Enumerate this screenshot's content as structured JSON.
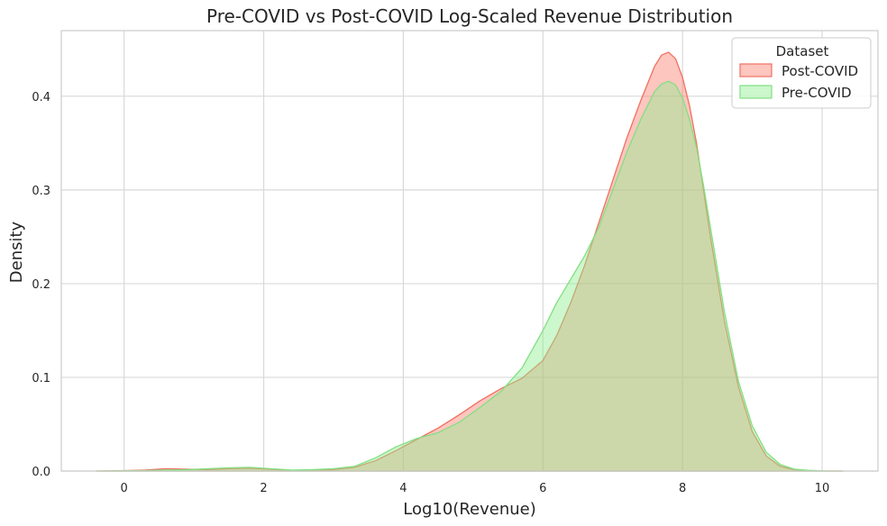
{
  "chart_data": {
    "type": "area",
    "title": "Pre-COVID vs Post-COVID Log-Scaled Revenue Distribution",
    "xlabel": "Log10(Revenue)",
    "ylabel": "Density",
    "xlim": [
      -0.9,
      10.8
    ],
    "ylim": [
      0,
      0.47
    ],
    "xticks": [
      0,
      2,
      4,
      6,
      8,
      10
    ],
    "yticks": [
      0.0,
      0.1,
      0.2,
      0.3,
      0.4
    ],
    "grid": true,
    "legend": {
      "title": "Dataset",
      "placement": "top-right"
    },
    "series": [
      {
        "name": "Post-COVID",
        "fill": "#fa8072",
        "fill_opacity": 0.45,
        "stroke": "#f07060",
        "x": [
          -0.4,
          0.0,
          0.3,
          0.6,
          0.9,
          1.2,
          1.5,
          1.8,
          2.1,
          2.4,
          2.7,
          3.0,
          3.3,
          3.6,
          3.9,
          4.2,
          4.5,
          4.8,
          5.1,
          5.4,
          5.7,
          6.0,
          6.2,
          6.4,
          6.6,
          6.8,
          7.0,
          7.2,
          7.4,
          7.6,
          7.7,
          7.8,
          7.9,
          8.0,
          8.1,
          8.2,
          8.3,
          8.4,
          8.6,
          8.8,
          9.0,
          9.2,
          9.4,
          9.6,
          9.8,
          10.0,
          10.3
        ],
        "y": [
          0.0,
          0.0005,
          0.001,
          0.0025,
          0.002,
          0.0015,
          0.0025,
          0.003,
          0.002,
          0.0005,
          0.0005,
          0.0015,
          0.004,
          0.011,
          0.022,
          0.034,
          0.046,
          0.06,
          0.075,
          0.088,
          0.099,
          0.118,
          0.145,
          0.18,
          0.22,
          0.265,
          0.31,
          0.355,
          0.395,
          0.432,
          0.444,
          0.447,
          0.44,
          0.42,
          0.39,
          0.35,
          0.3,
          0.25,
          0.16,
          0.09,
          0.042,
          0.016,
          0.005,
          0.0015,
          0.0005,
          0.0001,
          0.0
        ]
      },
      {
        "name": "Pre-COVID",
        "fill": "#90ee90",
        "fill_opacity": 0.45,
        "stroke": "#82e082",
        "x": [
          -0.4,
          0.0,
          0.3,
          0.6,
          0.9,
          1.2,
          1.5,
          1.8,
          2.1,
          2.4,
          2.7,
          3.0,
          3.3,
          3.6,
          3.9,
          4.2,
          4.5,
          4.8,
          5.1,
          5.4,
          5.7,
          6.0,
          6.2,
          6.4,
          6.6,
          6.8,
          7.0,
          7.2,
          7.4,
          7.6,
          7.7,
          7.8,
          7.9,
          8.0,
          8.1,
          8.2,
          8.3,
          8.4,
          8.6,
          8.8,
          9.0,
          9.2,
          9.4,
          9.6,
          9.8,
          10.0,
          10.3
        ],
        "y": [
          0.0,
          0.0003,
          0.0005,
          0.001,
          0.0015,
          0.0025,
          0.0035,
          0.004,
          0.0025,
          0.001,
          0.0015,
          0.0025,
          0.005,
          0.014,
          0.026,
          0.035,
          0.041,
          0.052,
          0.068,
          0.085,
          0.11,
          0.15,
          0.18,
          0.205,
          0.23,
          0.26,
          0.3,
          0.34,
          0.375,
          0.405,
          0.413,
          0.416,
          0.412,
          0.398,
          0.375,
          0.345,
          0.305,
          0.26,
          0.17,
          0.096,
          0.048,
          0.02,
          0.007,
          0.002,
          0.0008,
          0.0002,
          0.0
        ]
      }
    ]
  }
}
